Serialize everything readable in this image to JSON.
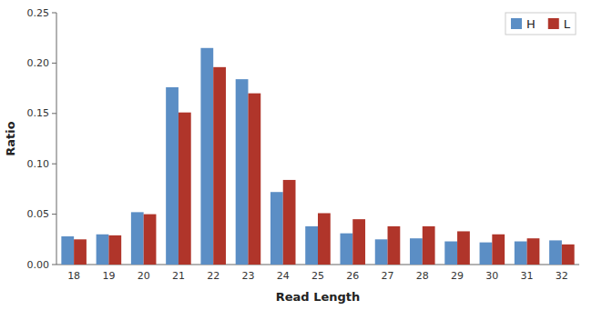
{
  "chart_data": {
    "type": "bar",
    "x_label": "Read Length",
    "y_label": "Ratio",
    "categories": [
      "18",
      "19",
      "20",
      "21",
      "22",
      "23",
      "24",
      "25",
      "26",
      "27",
      "28",
      "29",
      "30",
      "31",
      "32"
    ],
    "series": [
      {
        "name": "H",
        "color": "#5B8EC5",
        "values": [
          0.028,
          0.03,
          0.052,
          0.176,
          0.215,
          0.184,
          0.072,
          0.038,
          0.031,
          0.025,
          0.026,
          0.023,
          0.022,
          0.023,
          0.024
        ]
      },
      {
        "name": "L",
        "color": "#B0352A",
        "values": [
          0.025,
          0.029,
          0.05,
          0.151,
          0.196,
          0.17,
          0.084,
          0.051,
          0.045,
          0.038,
          0.038,
          0.033,
          0.03,
          0.026,
          0.02
        ]
      }
    ],
    "ylim": [
      0,
      0.25
    ],
    "yticks": [
      {
        "value": 0,
        "label": "0.00"
      },
      0.05,
      {
        "value": 0.1,
        "label": "0.10"
      },
      0.15,
      {
        "value": 0.2,
        "label": "0.20"
      },
      0.25
    ],
    "grid": false,
    "legend": "top-right"
  }
}
